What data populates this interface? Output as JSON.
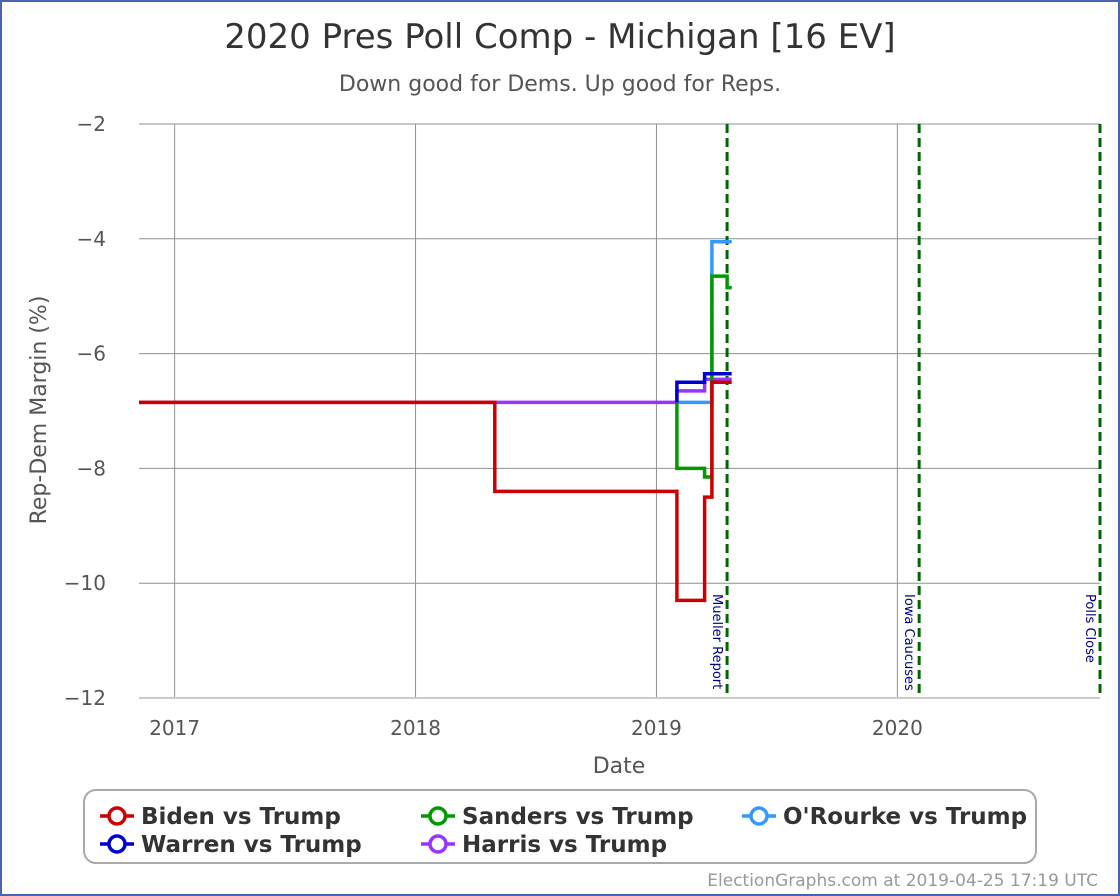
{
  "colors": {
    "lean_dem_band": "#ccccff",
    "strong_dem_band": "#9999ff",
    "grid": "#909090",
    "event_line": "#006600",
    "frame": "#4a64b4"
  },
  "chart_data": {
    "type": "line",
    "title": "2020 Pres Poll Comp - Michigan [16 EV]",
    "subtitle": "Down good for Dems. Up good for Reps.",
    "xlabel": "Date",
    "ylabel": "Rep-Dem Margin (%)",
    "xlim": [
      "2016-11-08",
      "2020-11-03"
    ],
    "ylim": [
      -12,
      -2
    ],
    "x_ticks": [
      {
        "date": "2017-01-01",
        "label": "2017"
      },
      {
        "date": "2018-01-01",
        "label": "2018"
      },
      {
        "date": "2019-01-01",
        "label": "2019"
      },
      {
        "date": "2020-01-01",
        "label": "2020"
      }
    ],
    "y_ticks": [
      {
        "value": -2,
        "label": "−2"
      },
      {
        "value": -4,
        "label": "−4"
      },
      {
        "value": -6,
        "label": "−6"
      },
      {
        "value": -8,
        "label": "−8"
      },
      {
        "value": -10,
        "label": "−10"
      },
      {
        "value": -12,
        "label": "−12"
      }
    ],
    "bands": [
      {
        "from": -10,
        "to": -5,
        "color": "#ccccff"
      },
      {
        "from": -12,
        "to": -10,
        "color": "#9999ff"
      }
    ],
    "events": [
      {
        "date": "2019-04-18",
        "label": "Mueller Report"
      },
      {
        "date": "2020-02-03",
        "label": "Iowa Caucuses"
      },
      {
        "date": "2020-11-03",
        "label": "Polls Close"
      }
    ],
    "series": [
      {
        "name": "Harris vs Trump",
        "color": "#9933ff",
        "points": [
          [
            "2016-11-08",
            -6.85
          ],
          [
            "2019-02-01",
            -6.85
          ],
          [
            "2019-02-01",
            -6.65
          ],
          [
            "2019-03-15",
            -6.65
          ],
          [
            "2019-03-15",
            -6.45
          ],
          [
            "2019-04-25",
            -6.45
          ]
        ]
      },
      {
        "name": "O'Rourke vs Trump",
        "color": "#3399ff",
        "points": [
          [
            "2019-02-01",
            -6.85
          ],
          [
            "2019-03-26",
            -6.85
          ],
          [
            "2019-03-26",
            -4.05
          ],
          [
            "2019-04-25",
            -4.05
          ]
        ]
      },
      {
        "name": "Sanders vs Trump",
        "color": "#009900",
        "points": [
          [
            "2019-02-01",
            -6.85
          ],
          [
            "2019-02-01",
            -8.0
          ],
          [
            "2019-03-15",
            -8.0
          ],
          [
            "2019-03-15",
            -8.15
          ],
          [
            "2019-03-26",
            -8.15
          ],
          [
            "2019-03-26",
            -4.65
          ],
          [
            "2019-04-18",
            -4.65
          ],
          [
            "2019-04-18",
            -4.85
          ],
          [
            "2019-04-25",
            -4.85
          ]
        ]
      },
      {
        "name": "Warren vs Trump",
        "color": "#0000cc",
        "points": [
          [
            "2019-02-01",
            -6.85
          ],
          [
            "2019-02-01",
            -6.5
          ],
          [
            "2019-03-15",
            -6.5
          ],
          [
            "2019-03-15",
            -6.35
          ],
          [
            "2019-04-25",
            -6.35
          ]
        ]
      },
      {
        "name": "Biden vs Trump",
        "color": "#cc0000",
        "points": [
          [
            "2016-11-08",
            -6.85
          ],
          [
            "2018-05-01",
            -6.85
          ],
          [
            "2018-05-01",
            -8.4
          ],
          [
            "2019-02-01",
            -8.4
          ],
          [
            "2019-02-01",
            -10.3
          ],
          [
            "2019-03-15",
            -10.3
          ],
          [
            "2019-03-15",
            -8.5
          ],
          [
            "2019-03-26",
            -8.5
          ],
          [
            "2019-03-26",
            -6.5
          ],
          [
            "2019-04-25",
            -6.5
          ]
        ]
      }
    ],
    "legend": {
      "placement": "bottom",
      "items": [
        {
          "name": "Biden vs Trump",
          "color": "#cc0000"
        },
        {
          "name": "Sanders vs Trump",
          "color": "#009900"
        },
        {
          "name": "O'Rourke vs Trump",
          "color": "#3399ff"
        },
        {
          "name": "Warren vs Trump",
          "color": "#0000cc"
        },
        {
          "name": "Harris vs Trump",
          "color": "#9933ff"
        }
      ]
    },
    "credit": "ElectionGraphs.com at 2019-04-25 17:19 UTC"
  }
}
